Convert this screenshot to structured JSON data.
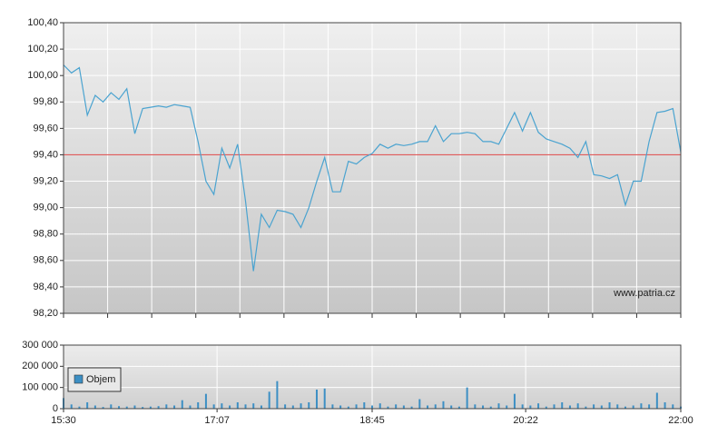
{
  "chart_data": [
    {
      "type": "line",
      "watermark": "www.patria.cz",
      "x": [
        "15:30",
        "15:35",
        "15:40",
        "15:45",
        "15:50",
        "15:55",
        "16:00",
        "16:05",
        "16:10",
        "16:15",
        "16:20",
        "16:25",
        "16:30",
        "16:35",
        "16:40",
        "16:45",
        "16:50",
        "16:55",
        "17:00",
        "17:05",
        "17:10",
        "17:15",
        "17:20",
        "17:25",
        "17:30",
        "17:35",
        "17:40",
        "17:45",
        "17:50",
        "17:55",
        "18:00",
        "18:05",
        "18:10",
        "18:15",
        "18:20",
        "18:25",
        "18:30",
        "18:35",
        "18:40",
        "18:45",
        "18:50",
        "18:55",
        "19:00",
        "19:05",
        "19:10",
        "19:15",
        "19:20",
        "19:25",
        "19:30",
        "19:35",
        "19:40",
        "19:45",
        "19:50",
        "19:55",
        "20:00",
        "20:05",
        "20:10",
        "20:15",
        "20:20",
        "20:25",
        "20:30",
        "20:35",
        "20:40",
        "20:45",
        "20:50",
        "20:55",
        "21:00",
        "21:05",
        "21:10",
        "21:15",
        "21:20",
        "21:25",
        "21:30",
        "21:35",
        "21:40",
        "21:45",
        "21:50",
        "21:55",
        "22:00"
      ],
      "values": [
        100.08,
        100.02,
        100.06,
        99.7,
        99.85,
        99.8,
        99.87,
        99.82,
        99.9,
        99.56,
        99.75,
        99.76,
        99.77,
        99.76,
        99.78,
        99.77,
        99.76,
        99.5,
        99.2,
        99.1,
        99.45,
        99.3,
        99.48,
        99.05,
        98.52,
        98.95,
        98.85,
        98.98,
        98.97,
        98.95,
        98.85,
        99.0,
        99.2,
        99.38,
        99.12,
        99.12,
        99.35,
        99.33,
        99.38,
        99.41,
        99.48,
        99.45,
        99.48,
        99.47,
        99.48,
        99.5,
        99.5,
        99.62,
        99.5,
        99.56,
        99.56,
        99.57,
        99.56,
        99.5,
        99.5,
        99.48,
        99.6,
        99.72,
        99.58,
        99.72,
        99.57,
        99.52,
        99.5,
        99.48,
        99.45,
        99.38,
        99.5,
        99.25,
        99.24,
        99.22,
        99.25,
        99.02,
        99.2,
        99.2,
        99.5,
        99.72,
        99.73,
        99.75,
        99.42
      ],
      "color": "#4aa3d0",
      "reference_line": 99.4,
      "reference_color": "#e05a5a",
      "xlim": [
        "15:30",
        "22:00"
      ],
      "ylim": [
        98.2,
        100.4
      ],
      "yticks": [
        {
          "value": 98.2,
          "label": "98,20"
        },
        {
          "value": 98.4,
          "label": "98,40"
        },
        {
          "value": 98.6,
          "label": "98,60"
        },
        {
          "value": 98.8,
          "label": "98,80"
        },
        {
          "value": 99.0,
          "label": "99,00"
        },
        {
          "value": 99.2,
          "label": "99,20"
        },
        {
          "value": 99.4,
          "label": "99,40"
        },
        {
          "value": 99.6,
          "label": "99,60"
        },
        {
          "value": 99.8,
          "label": "99,80"
        },
        {
          "value": 100.0,
          "label": "100,00"
        },
        {
          "value": 100.2,
          "label": "100,20"
        },
        {
          "value": 100.4,
          "label": "100,40"
        }
      ],
      "grid": true
    },
    {
      "type": "bar",
      "x": [
        "15:30",
        "15:35",
        "15:40",
        "15:45",
        "15:50",
        "15:55",
        "16:00",
        "16:05",
        "16:10",
        "16:15",
        "16:20",
        "16:25",
        "16:30",
        "16:35",
        "16:40",
        "16:45",
        "16:50",
        "16:55",
        "17:00",
        "17:05",
        "17:10",
        "17:15",
        "17:20",
        "17:25",
        "17:30",
        "17:35",
        "17:40",
        "17:45",
        "17:50",
        "17:55",
        "18:00",
        "18:05",
        "18:10",
        "18:15",
        "18:20",
        "18:25",
        "18:30",
        "18:35",
        "18:40",
        "18:45",
        "18:50",
        "18:55",
        "19:00",
        "19:05",
        "19:10",
        "19:15",
        "19:20",
        "19:25",
        "19:30",
        "19:35",
        "19:40",
        "19:45",
        "19:50",
        "19:55",
        "20:00",
        "20:05",
        "20:10",
        "20:15",
        "20:20",
        "20:25",
        "20:30",
        "20:35",
        "20:40",
        "20:45",
        "20:50",
        "20:55",
        "21:00",
        "21:05",
        "21:10",
        "21:15",
        "21:20",
        "21:25",
        "21:30",
        "21:35",
        "21:40",
        "21:45",
        "21:50",
        "21:55",
        "22:00"
      ],
      "series": [
        {
          "name": "Objem",
          "color": "#3c8fc4",
          "values": [
            50000,
            20000,
            10000,
            30000,
            15000,
            8000,
            20000,
            12000,
            10000,
            15000,
            8000,
            10000,
            12000,
            20000,
            15000,
            40000,
            15000,
            30000,
            70000,
            20000,
            25000,
            15000,
            30000,
            20000,
            25000,
            15000,
            80000,
            130000,
            20000,
            15000,
            25000,
            30000,
            90000,
            95000,
            20000,
            15000,
            10000,
            20000,
            30000,
            15000,
            25000,
            10000,
            20000,
            15000,
            10000,
            45000,
            15000,
            20000,
            35000,
            15000,
            10000,
            100000,
            20000,
            15000,
            10000,
            25000,
            15000,
            70000,
            20000,
            15000,
            25000,
            10000,
            20000,
            30000,
            15000,
            25000,
            10000,
            20000,
            15000,
            30000,
            20000,
            10000,
            15000,
            25000,
            20000,
            75000,
            30000,
            20000,
            10000
          ]
        }
      ],
      "xlim": [
        "15:30",
        "22:00"
      ],
      "xticks": [
        "15:30",
        "17:07",
        "18:45",
        "20:22",
        "22:00"
      ],
      "ylim": [
        0,
        300000
      ],
      "yticks": [
        {
          "value": 0,
          "label": "0"
        },
        {
          "value": 100000,
          "label": "100 000"
        },
        {
          "value": 200000,
          "label": "200 000"
        },
        {
          "value": 300000,
          "label": "300 000"
        }
      ],
      "grid": true,
      "legend": "upper-left"
    }
  ]
}
